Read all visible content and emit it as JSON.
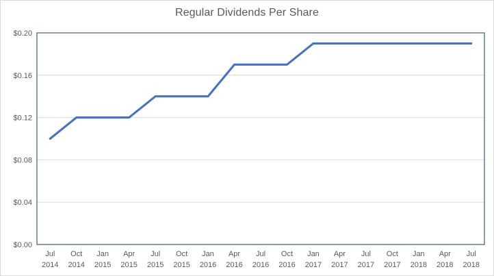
{
  "window": {
    "background": "#ffffff",
    "outer_border_color": "#d9d9d9"
  },
  "chart_data": {
    "type": "line",
    "title": "Regular Dividends Per Share",
    "categories": [
      "Jul 2014",
      "Oct 2014",
      "Jan 2015",
      "Apr 2015",
      "Jul 2015",
      "Oct 2015",
      "Jan 2016",
      "Apr 2016",
      "Jul 2016",
      "Oct 2016",
      "Jan 2017",
      "Apr 2017",
      "Jul 2017",
      "Oct 2017",
      "Jan 2018",
      "Apr 2018",
      "Jul 2018"
    ],
    "values": [
      0.1,
      0.12,
      0.12,
      0.12,
      0.14,
      0.14,
      0.14,
      0.17,
      0.17,
      0.17,
      0.19,
      0.19,
      0.19,
      0.19,
      0.19,
      0.19,
      0.19
    ],
    "xlabel": "",
    "ylabel": "",
    "ylim": [
      0,
      0.2
    ],
    "ytick_step": 0.04,
    "ytick_labels": [
      "$0.00",
      "$0.04",
      "$0.08",
      "$0.12",
      "$0.16",
      "$0.20"
    ],
    "x_tick_style": "two-line month over year",
    "grid": "horizontal",
    "legend": "none",
    "markers": "none",
    "colors": {
      "line": "#4472c4",
      "gridline": "#d9d9d9",
      "plot_border": "#4a6785",
      "text": "#595959"
    }
  }
}
